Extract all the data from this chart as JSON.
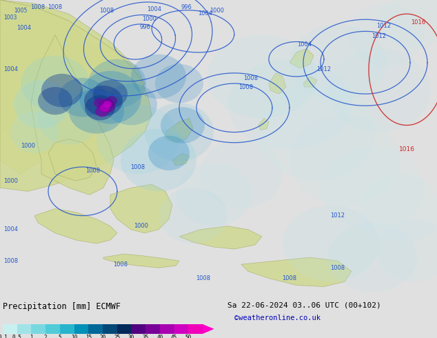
{
  "title_left": "Precipitation [mm] ECMWF",
  "title_right": "Sa 22-06-2024 03..06 UTC (00+102)",
  "credit": "©weatheronline.co.uk",
  "colorbar_tick_labels": [
    "0.1",
    "0.5",
    "1",
    "2",
    "5",
    "10",
    "15",
    "20",
    "25",
    "30",
    "35",
    "40",
    "45",
    "50"
  ],
  "colorbar_colors": [
    "#c8f0f0",
    "#a0e4e8",
    "#78d8e0",
    "#50ccd8",
    "#28b4cc",
    "#0090b8",
    "#006898",
    "#004878",
    "#002858",
    "#500080",
    "#780098",
    "#a800b0",
    "#d000c0",
    "#f000b8",
    "#ff00c8"
  ],
  "bg_color": "#e0e0e0",
  "bottom_bg": "#e8e8e8",
  "title_fontsize": 8.5,
  "credit_color": "#0000bb",
  "credit_fontsize": 7.5,
  "map_ocean_color": "#c8dce8",
  "map_land_color": "#d0d890",
  "isobar_blue": "#2255cc",
  "isobar_red": "#cc2222"
}
